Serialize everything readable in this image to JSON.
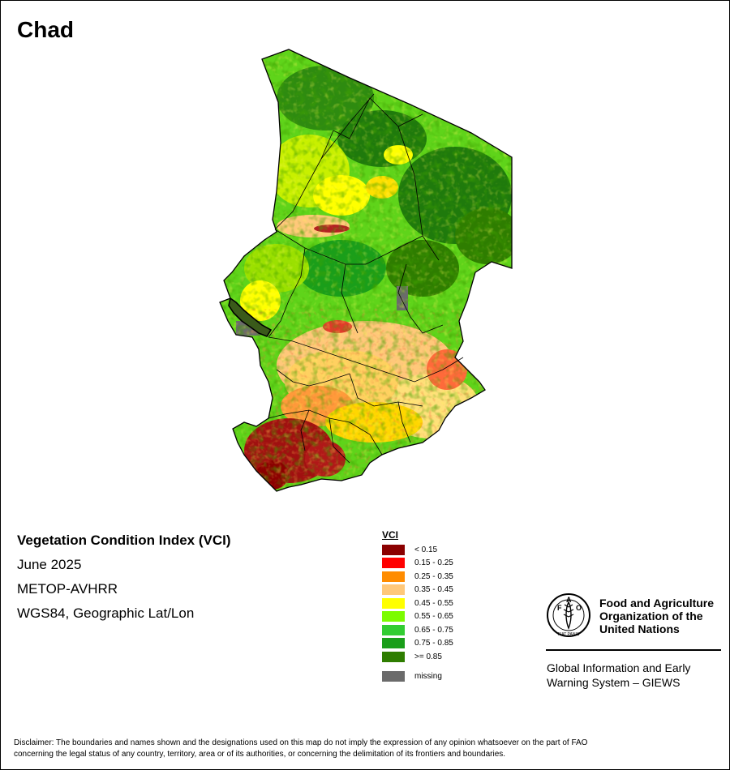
{
  "map": {
    "title": "Chad"
  },
  "info": {
    "index_title": "Vegetation Condition Index (VCI)",
    "period": "June 2025",
    "sensor": "METOP-AVHRR",
    "projection": "WGS84, Geographic Lat/Lon"
  },
  "legend": {
    "title": "VCI",
    "classes": [
      {
        "label": "< 0.15",
        "color": "#8b0000"
      },
      {
        "label": "0.15 - 0.25",
        "color": "#ff0000"
      },
      {
        "label": "0.25 - 0.35",
        "color": "#ff8c00"
      },
      {
        "label": "0.35 - 0.45",
        "color": "#ffc87a"
      },
      {
        "label": "0.45 - 0.55",
        "color": "#ffff00"
      },
      {
        "label": "0.55 - 0.65",
        "color": "#7cfc00"
      },
      {
        "label": "0.65 - 0.75",
        "color": "#32cd32"
      },
      {
        "label": "0.75 - 0.85",
        "color": "#1a9e1a"
      },
      {
        "label": ">= 0.85",
        "color": "#2e7d00"
      }
    ],
    "missing": {
      "label": "missing",
      "color": "#6b6b6b"
    }
  },
  "logo": {
    "org_line1": "Food and Agriculture",
    "org_line2": "Organization of the",
    "org_line3": "United Nations",
    "giews_line1": "Global Information and Early",
    "giews_line2": "Warning System – GIEWS",
    "emblem_letters": "FAO",
    "emblem_motto": "FIAT PANIS"
  },
  "disclaimer": {
    "line1": "Disclaimer: The boundaries and names shown and the designations used on this map do not imply the expression of any opinion whatsoever on the part of FAO",
    "line2": "concerning the legal status of any country, territory, area or of its authorities, or concerning the delimitation of its frontiers and boundaries."
  }
}
